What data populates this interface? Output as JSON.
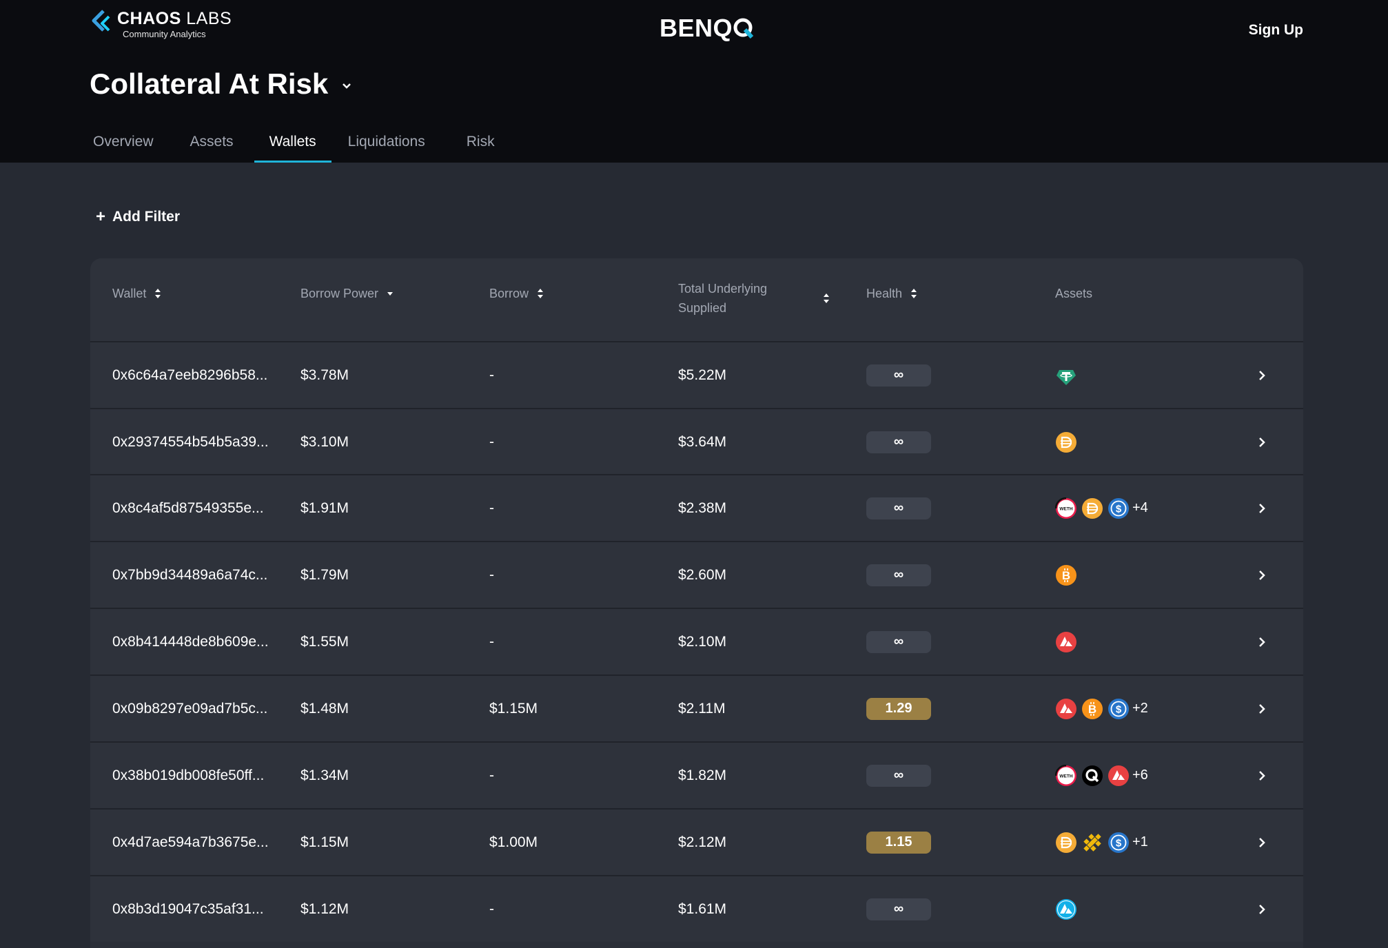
{
  "header": {
    "logo_name_bold": "CHAOS",
    "logo_name_thin": "LABS",
    "logo_sub": "Community Analytics",
    "brand": "BENQ",
    "signup_label": "Sign Up",
    "page_title": "Collateral At Risk"
  },
  "tabs": [
    {
      "label": "Overview",
      "active": false
    },
    {
      "label": "Assets",
      "active": false
    },
    {
      "label": "Wallets",
      "active": true
    },
    {
      "label": "Liquidations",
      "active": false
    },
    {
      "label": "Risk",
      "active": false
    }
  ],
  "filter": {
    "add_label": "Add Filter",
    "plus": "+"
  },
  "columns": {
    "wallet": "Wallet",
    "borrow_power": "Borrow Power",
    "borrow": "Borrow",
    "total_line1": "Total Underlying",
    "total_line2": "Supplied",
    "health": "Health",
    "assets": "Assets"
  },
  "colors": {
    "accent": "#1fb4d9",
    "health_warn": "#9b8044",
    "health_default": "#3e434e"
  },
  "rows": [
    {
      "wallet": "0x6c64a7eeb8296b58...",
      "borrow_power": "$3.78M",
      "borrow": "-",
      "total": "$5.22M",
      "health": "∞",
      "assets": [
        "usdt-icon"
      ],
      "more": ""
    },
    {
      "wallet": "0x29374554b54b5a39...",
      "borrow_power": "$3.10M",
      "borrow": "-",
      "total": "$3.64M",
      "health": "∞",
      "assets": [
        "dai-icon"
      ],
      "more": ""
    },
    {
      "wallet": "0x8c4af5d87549355e...",
      "borrow_power": "$1.91M",
      "borrow": "-",
      "total": "$2.38M",
      "health": "∞",
      "assets": [
        "weth-icon",
        "dai-icon",
        "usdc-icon"
      ],
      "more": "+4"
    },
    {
      "wallet": "0x7bb9d34489a6a74c...",
      "borrow_power": "$1.79M",
      "borrow": "-",
      "total": "$2.60M",
      "health": "∞",
      "assets": [
        "btc-icon"
      ],
      "more": ""
    },
    {
      "wallet": "0x8b414448de8b609e...",
      "borrow_power": "$1.55M",
      "borrow": "-",
      "total": "$2.10M",
      "health": "∞",
      "assets": [
        "avax-icon"
      ],
      "more": ""
    },
    {
      "wallet": "0x09b8297e09ad7b5c...",
      "borrow_power": "$1.48M",
      "borrow": "$1.15M",
      "total": "$2.11M",
      "health": "1.29",
      "assets": [
        "avax-icon",
        "btc-icon",
        "usdc-icon"
      ],
      "more": "+2"
    },
    {
      "wallet": "0x38b019db008fe50ff...",
      "borrow_power": "$1.34M",
      "borrow": "-",
      "total": "$1.82M",
      "health": "∞",
      "assets": [
        "weth-icon",
        "qi-icon",
        "avax-icon"
      ],
      "more": "+6"
    },
    {
      "wallet": "0x4d7ae594a7b3675e...",
      "borrow_power": "$1.15M",
      "borrow": "$1.00M",
      "total": "$2.12M",
      "health": "1.15",
      "assets": [
        "dai-icon",
        "busd-icon",
        "usdc-icon"
      ],
      "more": "+1"
    },
    {
      "wallet": "0x8b3d19047c35af31...",
      "borrow_power": "$1.12M",
      "borrow": "-",
      "total": "$1.61M",
      "health": "∞",
      "assets": [
        "savax-icon"
      ],
      "more": ""
    }
  ]
}
